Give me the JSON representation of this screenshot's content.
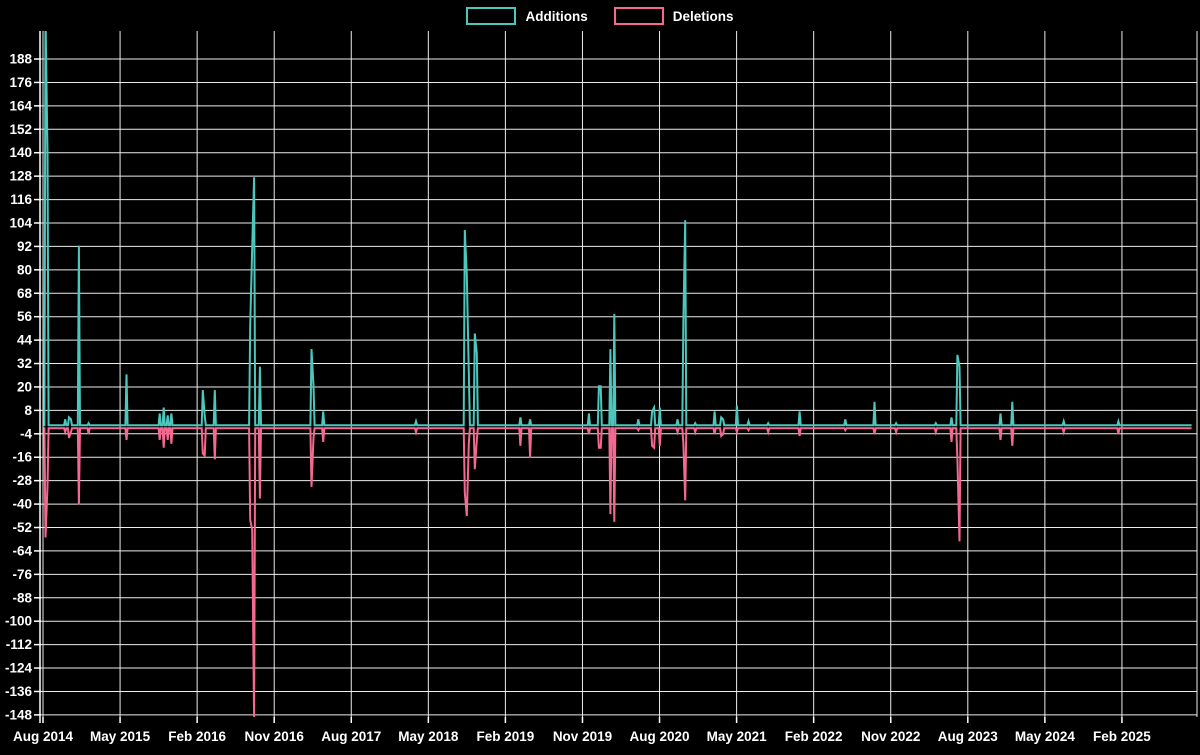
{
  "legend": {
    "items": [
      {
        "label": "Additions",
        "color": "#4dc6bd"
      },
      {
        "label": "Deletions",
        "color": "#f46992"
      }
    ]
  },
  "chart_data": {
    "type": "line",
    "title": "",
    "xlabel": "",
    "ylabel": "",
    "grid": true,
    "legend_position": "top-center",
    "background_color": "#000000",
    "gridline_color": "#ececec",
    "label_color": "#ffffff",
    "x_axis": {
      "tick_labels": [
        "Aug 2014",
        "May 2015",
        "Feb 2016",
        "Nov 2016",
        "Aug 2017",
        "May 2018",
        "Feb 2019",
        "Nov 2019",
        "Aug 2020",
        "May 2021",
        "Feb 2022",
        "Nov 2022",
        "Aug 2023",
        "May 2024",
        "Feb 2025"
      ]
    },
    "y_axis": {
      "ticks": [
        188,
        176,
        164,
        152,
        140,
        128,
        116,
        104,
        92,
        80,
        68,
        56,
        44,
        32,
        20,
        8,
        -4,
        -16,
        -28,
        -40,
        -52,
        -64,
        -76,
        -88,
        -100,
        -112,
        -124,
        -136,
        -148
      ],
      "range": [
        -150,
        210
      ]
    },
    "series_meta": [
      {
        "name": "Additions",
        "color": "#4dc6bd"
      },
      {
        "name": "Deletions",
        "color": "#f46992"
      }
    ],
    "start_date": "2014-08-03",
    "end_date": "2025-10-05",
    "weekly_points": [
      {
        "date": "2014-08-10",
        "additions": 210,
        "deletions": -56
      },
      {
        "date": "2014-08-17",
        "additions": 140,
        "deletions": -30
      },
      {
        "date": "2014-10-19",
        "additions": 3,
        "deletions": -2
      },
      {
        "date": "2014-11-02",
        "additions": 4,
        "deletions": -5
      },
      {
        "date": "2014-11-09",
        "additions": 3,
        "deletions": -2
      },
      {
        "date": "2014-12-07",
        "additions": 92,
        "deletions": -39
      },
      {
        "date": "2015-01-11",
        "additions": 1,
        "deletions": -3
      },
      {
        "date": "2015-05-24",
        "additions": 26,
        "deletions": -6
      },
      {
        "date": "2015-09-20",
        "additions": 6,
        "deletions": -6
      },
      {
        "date": "2015-10-04",
        "additions": 9,
        "deletions": -10
      },
      {
        "date": "2015-10-18",
        "additions": 5,
        "deletions": -6
      },
      {
        "date": "2015-11-01",
        "additions": 6,
        "deletions": -8
      },
      {
        "date": "2016-02-21",
        "additions": 18,
        "deletions": -13
      },
      {
        "date": "2016-02-28",
        "additions": 5,
        "deletions": -14
      },
      {
        "date": "2016-04-03",
        "additions": 18,
        "deletions": -16
      },
      {
        "date": "2016-08-07",
        "additions": 51,
        "deletions": -47
      },
      {
        "date": "2016-08-14",
        "additions": 91,
        "deletions": -52
      },
      {
        "date": "2016-08-21",
        "additions": 127,
        "deletions": -150
      },
      {
        "date": "2016-09-11",
        "additions": 30,
        "deletions": -36
      },
      {
        "date": "2017-03-12",
        "additions": 39,
        "deletions": -30
      },
      {
        "date": "2017-03-19",
        "additions": 20,
        "deletions": -5
      },
      {
        "date": "2017-04-23",
        "additions": 7,
        "deletions": -7
      },
      {
        "date": "2018-03-18",
        "additions": 2,
        "deletions": -2
      },
      {
        "date": "2018-09-09",
        "additions": 100,
        "deletions": -33
      },
      {
        "date": "2018-09-16",
        "additions": 77,
        "deletions": -45
      },
      {
        "date": "2018-09-23",
        "additions": 27,
        "deletions": -8
      },
      {
        "date": "2018-10-14",
        "additions": 47,
        "deletions": -21
      },
      {
        "date": "2018-10-21",
        "additions": 37,
        "deletions": -6
      },
      {
        "date": "2019-03-24",
        "additions": 4,
        "deletions": -9
      },
      {
        "date": "2019-04-28",
        "additions": 3,
        "deletions": -15
      },
      {
        "date": "2019-11-24",
        "additions": 6,
        "deletions": -3
      },
      {
        "date": "2019-12-29",
        "additions": 20,
        "deletions": -10
      },
      {
        "date": "2020-01-05",
        "additions": 20,
        "deletions": -10
      },
      {
        "date": "2020-02-09",
        "additions": 39,
        "deletions": -44
      },
      {
        "date": "2020-02-23",
        "additions": 57,
        "deletions": -48
      },
      {
        "date": "2020-05-17",
        "additions": 3,
        "deletions": -1
      },
      {
        "date": "2020-07-05",
        "additions": 7,
        "deletions": -9
      },
      {
        "date": "2020-07-12",
        "additions": 9,
        "deletions": -10
      },
      {
        "date": "2020-08-02",
        "additions": 9,
        "deletions": -9
      },
      {
        "date": "2020-10-04",
        "additions": 3,
        "deletions": -2
      },
      {
        "date": "2020-10-25",
        "additions": 54,
        "deletions": -8
      },
      {
        "date": "2020-11-01",
        "additions": 105,
        "deletions": -37
      },
      {
        "date": "2020-12-06",
        "additions": 1,
        "deletions": -2
      },
      {
        "date": "2021-02-14",
        "additions": 7,
        "deletions": -3
      },
      {
        "date": "2021-03-07",
        "additions": 4,
        "deletions": -4
      },
      {
        "date": "2021-03-14",
        "additions": 3,
        "deletions": -3
      },
      {
        "date": "2021-05-02",
        "additions": 10,
        "deletions": -2
      },
      {
        "date": "2021-06-13",
        "additions": 2,
        "deletions": -1
      },
      {
        "date": "2021-08-22",
        "additions": 1,
        "deletions": -2
      },
      {
        "date": "2021-12-12",
        "additions": 7,
        "deletions": -4
      },
      {
        "date": "2022-05-22",
        "additions": 3,
        "deletions": -1
      },
      {
        "date": "2022-09-04",
        "additions": 12,
        "deletions": -3
      },
      {
        "date": "2022-11-20",
        "additions": 1,
        "deletions": -2
      },
      {
        "date": "2023-04-09",
        "additions": 1,
        "deletions": -2
      },
      {
        "date": "2023-06-04",
        "additions": 4,
        "deletions": -7
      },
      {
        "date": "2023-06-25",
        "additions": 36,
        "deletions": -16
      },
      {
        "date": "2023-07-02",
        "additions": 30,
        "deletions": -58
      },
      {
        "date": "2023-11-26",
        "additions": 6,
        "deletions": -6
      },
      {
        "date": "2024-01-07",
        "additions": 12,
        "deletions": -9
      },
      {
        "date": "2024-07-07",
        "additions": 2,
        "deletions": -2
      },
      {
        "date": "2025-01-19",
        "additions": 2,
        "deletions": -3
      }
    ]
  }
}
